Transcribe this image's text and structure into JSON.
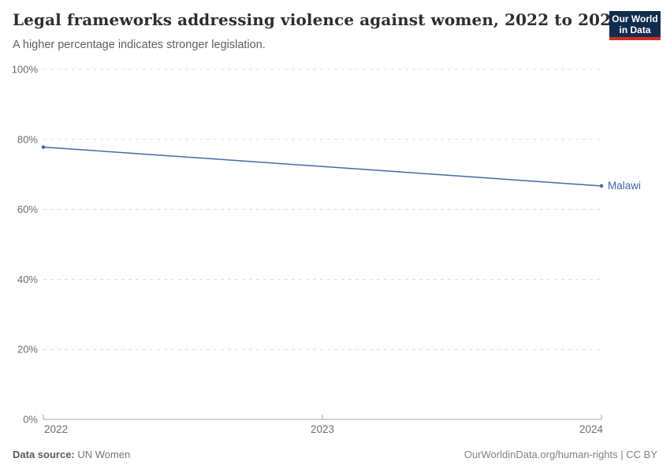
{
  "header": {
    "title": "Legal frameworks addressing violence against women, 2022 to 2024",
    "subtitle": "A higher percentage indicates stronger legislation.",
    "logo": {
      "line1": "Our World",
      "line2": "in Data"
    }
  },
  "chart_data": {
    "type": "line",
    "title": "Legal frameworks addressing violence against women, 2022 to 2024",
    "subtitle": "A higher percentage indicates stronger legislation.",
    "xlabel": "",
    "ylabel": "",
    "xlim": [
      2022,
      2024
    ],
    "ylim": [
      0,
      100
    ],
    "grid": true,
    "legend_position": "end-of-line",
    "x_ticks": [
      2022,
      2023,
      2024
    ],
    "x_tick_labels": [
      "2022",
      "2023",
      "2024"
    ],
    "y_ticks": [
      0,
      20,
      40,
      60,
      80,
      100
    ],
    "y_tick_labels": [
      "0%",
      "20%",
      "40%",
      "60%",
      "80%",
      "100%"
    ],
    "series": [
      {
        "name": "Malawi",
        "x": [
          2022,
          2024
        ],
        "values": [
          77.8,
          66.7
        ],
        "color": "#4a68a5"
      }
    ]
  },
  "footer": {
    "source_label": "Data source:",
    "source_value": "UN Women",
    "right_text": "OurWorldinData.org/human-rights | CC BY"
  },
  "colors": {
    "series": "#4a68a5",
    "series_label": "#3f63a8",
    "grid": "#dcdcdc",
    "axis": "#a5a5a5",
    "tick_label": "#6e6e6e",
    "logo_bg": "#112d4e",
    "logo_stripe": "#d02e26"
  }
}
